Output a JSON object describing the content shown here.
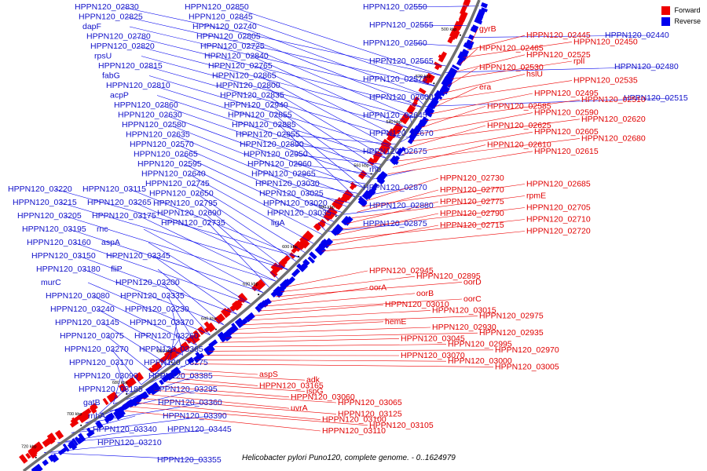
{
  "legend": {
    "forward_label": "Forward",
    "reverse_label": "Reverse",
    "forward_color": "#ee0000",
    "reverse_color": "#0000ee"
  },
  "caption": "Helicobacter pylori Puno120, complete genome. - 0..1624979",
  "ticks": [
    "500 kbp",
    "520 kbp",
    "540 kbp",
    "560 kbp",
    "580 kbp",
    "600 kbp",
    "620 kbp",
    "640 kbp",
    "660 kbp",
    "680 kbp",
    "700 kbp",
    "720 kbp"
  ],
  "reverse_labels": [
    "HPPN120_02830",
    "HPPN120_02825",
    "dapF",
    "HPPN120_02780",
    "HPPN120_02820",
    "rpsU",
    "HPPN120_02815",
    "fabG",
    "HPPN120_02810",
    "acpP",
    "HPPN120_02860",
    "HPPN120_02630",
    "HPPN120_02580",
    "HPPN120_02635",
    "HPPN120_02570",
    "HPPN120_02665",
    "HPPN120_02595",
    "HPPN120_02640",
    "HPPN120_02745",
    "HPPN120_02650",
    "HPPN120_02795",
    "HPPN120_02690",
    "HPPN120_02735",
    "HPPN120_02850",
    "HPPN120_02845",
    "HPPN120_02740",
    "HPPN120_02805",
    "HPPN120_02725",
    "HPPN120_02840",
    "HPPN120_02765",
    "HPPN120_02865",
    "HPPN120_02800",
    "HPPN120_02835",
    "HPPN120_02940",
    "HPPN120_02855",
    "HPPN120_02885",
    "HPPN120_02955",
    "HPPN120_02890",
    "HPPN120_02950",
    "HPPN120_02960",
    "HPPN120_02965",
    "HPPN120_03030",
    "HPPN120_03025",
    "HPPN120_03020",
    "HPPN120_03035",
    "ligA",
    "HPPN120_02550",
    "HPPN120_02555",
    "HPPN120_02560",
    "HPPN120_02565",
    "HPPN120_02575",
    "HPPN120_02600",
    "HPPN120_02645",
    "HPPN120_02670",
    "HPPN120_02675",
    "rho",
    "HPPN120_02870",
    "HPPN120_02880",
    "HPPN120_02875",
    "HPPN120_02440",
    "HPPN120_02480",
    "HPPN120_02515",
    "HPPN120_03220",
    "HPPN120_03215",
    "HPPN120_03205",
    "HPPN120_03195",
    "HPPN120_03160",
    "HPPN120_03150",
    "HPPN120_03180",
    "murC",
    "HPPN120_03080",
    "HPPN120_03240",
    "HPPN120_03145",
    "HPPN120_03075",
    "HPPN120_03270",
    "HPPN120_03170",
    "HPPN120_03090",
    "HPPN120_03185",
    "gatB",
    "rnhA",
    "HPPN120_03340",
    "HPPN120_03210",
    "HPPN120_03115",
    "HPPN120_03265",
    "HPPN120_03175",
    "rnc",
    "aspA",
    "HPPN120_03345",
    "fliP",
    "HPPN120_03200",
    "HPPN120_03335",
    "HPPN120_03230",
    "HPPN120_03370",
    "HPPN120_03260",
    "HPPN120_03365",
    "HPPN120_03275",
    "HPPN120_03385",
    "HPPN120_03295",
    "HPPN120_03360",
    "HPPN120_03390",
    "HPPN120_03445",
    "HPPN120_03355"
  ],
  "forward_labels": [
    "gyrB",
    "HPPN120_02445",
    "HPPN120_02450",
    "HPPN120_02465",
    "HPPN120_02525",
    "rplI",
    "HPPN120_02530",
    "hslU",
    "HPPN120_02535",
    "era",
    "HPPN120_02495",
    "HPPN120_02510",
    "HPPN120_02585",
    "HPPN120_02590",
    "HPPN120_02620",
    "HPPN120_02625",
    "HPPN120_02605",
    "HPPN120_02680",
    "HPPN120_02610",
    "HPPN120_02615",
    "HPPN120_02730",
    "HPPN120_02685",
    "HPPN120_02770",
    "rpmE",
    "HPPN120_02775",
    "HPPN120_02705",
    "HPPN120_02790",
    "HPPN120_02710",
    "HPPN120_02715",
    "HPPN120_02720",
    "HPPN120_02945",
    "HPPN120_02895",
    "oorD",
    "oorA",
    "oorB",
    "oorC",
    "HPPN120_03010",
    "HPPN120_03015",
    "HPPN120_02975",
    "hemE",
    "HPPN120_02930",
    "HPPN120_02935",
    "HPPN120_03045",
    "HPPN120_02995",
    "HPPN120_02970",
    "HPPN120_03070",
    "HPPN120_03000",
    "HPPN120_03005",
    "aspS",
    "adk",
    "HPPN120_03165",
    "ispG",
    "HPPN120_03060",
    "HPPN120_03065",
    "uvrA",
    "HPPN120_03125",
    "HPPN120_03100",
    "HPPN120_03105",
    "HPPN120_03110"
  ]
}
